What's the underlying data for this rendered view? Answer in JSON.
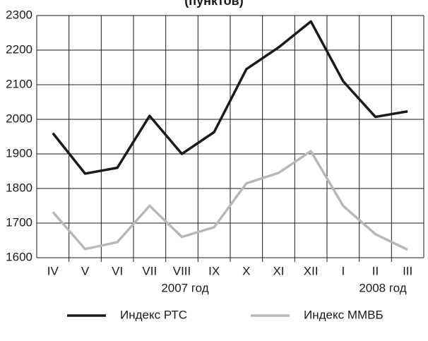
{
  "chart_data": {
    "type": "line",
    "title": "(пунктов)",
    "categories": [
      "IV",
      "V",
      "VI",
      "VII",
      "VIII",
      "IX",
      "X",
      "XI",
      "XII",
      "I",
      "II",
      "III"
    ],
    "series": [
      {
        "name": "Индекс РТС",
        "color": "#1a1a1a",
        "values": [
          1960,
          1843,
          1860,
          2010,
          1900,
          1963,
          2145,
          2208,
          2283,
          2110,
          2007,
          2023
        ]
      },
      {
        "name": "Индекс ММВБ",
        "color": "#b8b8b8",
        "values": [
          1732,
          1625,
          1645,
          1750,
          1660,
          1688,
          1815,
          1845,
          1908,
          1750,
          1668,
          1623
        ]
      }
    ],
    "annotations": [
      "2007 год",
      "2008 год"
    ],
    "ylim": [
      1600,
      2300
    ],
    "yticks": [
      1600,
      1700,
      1800,
      1900,
      2000,
      2100,
      2200,
      2300
    ],
    "grid": true,
    "legend": "bottom"
  }
}
